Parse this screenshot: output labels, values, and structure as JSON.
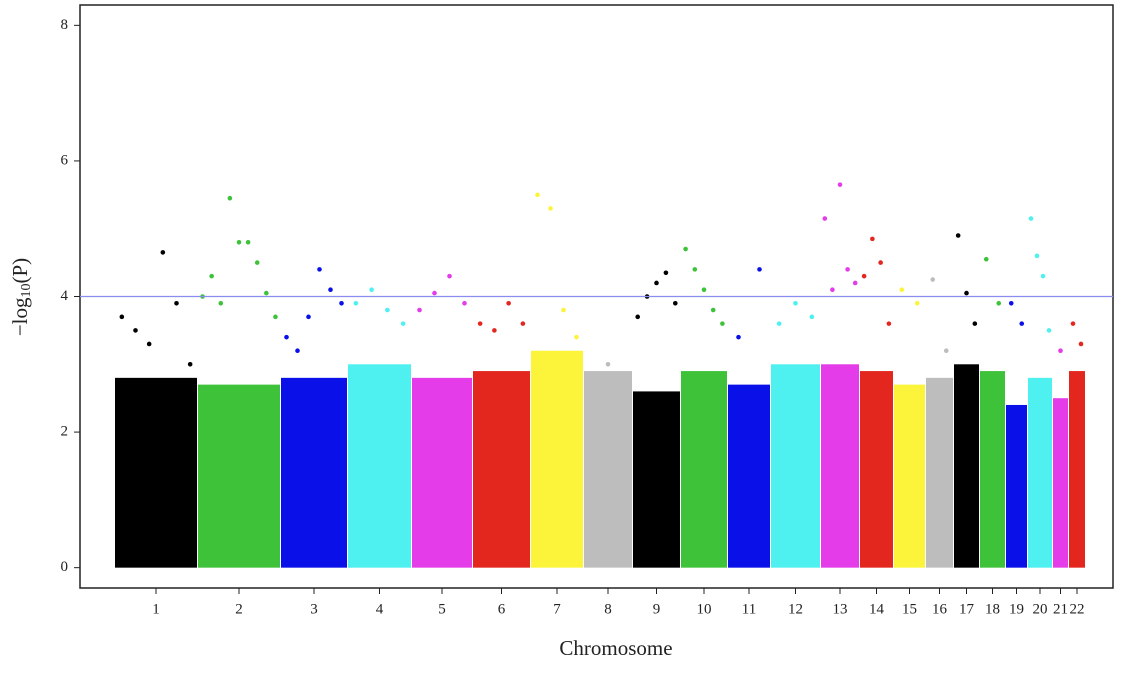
{
  "chart_data": {
    "type": "manhattan",
    "x_label": "Chromosome",
    "y_label": [
      "−log",
      "10",
      "(P)"
    ],
    "ylim": [
      -0.3,
      8.3
    ],
    "yticks": [
      0,
      2,
      4,
      6,
      8
    ],
    "threshold": 4,
    "threshold_color": "#8a8cf0",
    "series": [
      {
        "name": "1",
        "color": "#000000",
        "dense_top": 2.8,
        "values": [
          3.7,
          3.5,
          3.3,
          4.65,
          3.9,
          3.0
        ]
      },
      {
        "name": "2",
        "color": "#3ec23a",
        "dense_top": 2.7,
        "values": [
          4.0,
          4.3,
          3.9,
          5.45,
          4.8,
          4.8,
          4.5,
          4.05,
          3.7
        ]
      },
      {
        "name": "3",
        "color": "#0a10e8",
        "dense_top": 2.8,
        "values": [
          3.4,
          3.2,
          3.7,
          4.4,
          4.1,
          3.9
        ]
      },
      {
        "name": "4",
        "color": "#4ff0f0",
        "dense_top": 3.0,
        "values": [
          3.9,
          4.1,
          3.8,
          3.6
        ]
      },
      {
        "name": "5",
        "color": "#e43ce8",
        "dense_top": 2.8,
        "values": [
          3.8,
          4.05,
          4.3,
          3.9
        ]
      },
      {
        "name": "6",
        "color": "#e3261e",
        "dense_top": 2.9,
        "values": [
          3.6,
          3.5,
          3.9,
          3.6
        ]
      },
      {
        "name": "7",
        "color": "#fbf43a",
        "dense_top": 3.2,
        "values": [
          5.5,
          5.3,
          3.8,
          3.4
        ]
      },
      {
        "name": "8",
        "color": "#bdbdbd",
        "dense_top": 2.9,
        "values": [
          3.0
        ]
      },
      {
        "name": "9",
        "color": "#000000",
        "dense_top": 2.6,
        "values": [
          3.7,
          4.0,
          4.2,
          4.35,
          3.9
        ]
      },
      {
        "name": "10",
        "color": "#3ec23a",
        "dense_top": 2.9,
        "values": [
          4.7,
          4.4,
          4.1,
          3.8,
          3.6
        ]
      },
      {
        "name": "11",
        "color": "#0a10e8",
        "dense_top": 2.7,
        "values": [
          3.4,
          4.4
        ]
      },
      {
        "name": "12",
        "color": "#4ff0f0",
        "dense_top": 3.0,
        "values": [
          3.6,
          3.9,
          3.7
        ]
      },
      {
        "name": "13",
        "color": "#e43ce8",
        "dense_top": 3.0,
        "values": [
          5.15,
          4.1,
          5.65,
          4.4,
          4.2
        ]
      },
      {
        "name": "14",
        "color": "#e3261e",
        "dense_top": 2.9,
        "values": [
          4.3,
          4.85,
          4.5,
          3.6
        ]
      },
      {
        "name": "15",
        "color": "#fbf43a",
        "dense_top": 2.7,
        "values": [
          4.1,
          3.9
        ]
      },
      {
        "name": "16",
        "color": "#bdbdbd",
        "dense_top": 2.8,
        "values": [
          4.25,
          3.2
        ]
      },
      {
        "name": "17",
        "color": "#000000",
        "dense_top": 3.0,
        "values": [
          4.9,
          4.05,
          3.6
        ]
      },
      {
        "name": "18",
        "color": "#3ec23a",
        "dense_top": 2.9,
        "values": [
          4.55,
          3.9
        ]
      },
      {
        "name": "19",
        "color": "#0a10e8",
        "dense_top": 2.4,
        "values": [
          3.9,
          3.6
        ]
      },
      {
        "name": "20",
        "color": "#4ff0f0",
        "dense_top": 2.8,
        "values": [
          5.15,
          4.6,
          4.3,
          3.5
        ]
      },
      {
        "name": "21",
        "color": "#e43ce8",
        "dense_top": 2.5,
        "values": [
          3.2
        ]
      },
      {
        "name": "22",
        "color": "#e3261e",
        "dense_top": 2.9,
        "values": [
          3.6,
          3.3
        ]
      }
    ]
  }
}
